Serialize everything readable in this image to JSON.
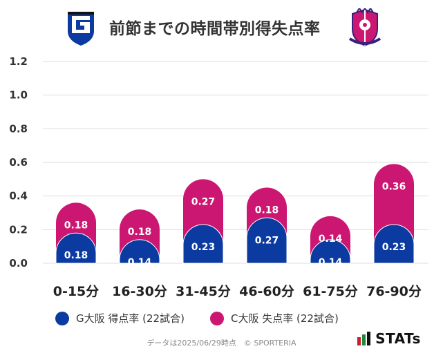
{
  "header": {
    "title": "前節までの時間帯別得失点率"
  },
  "colors": {
    "home": "#0b3aa0",
    "away": "#cc1772",
    "grid": "#dddddd"
  },
  "chart_data": {
    "type": "bar",
    "stacked": true,
    "categories": [
      "0-15分",
      "16-30分",
      "31-45分",
      "46-60分",
      "61-75分",
      "76-90分"
    ],
    "series": [
      {
        "name": "G大阪 得点率 (22試合)",
        "values": [
          0.18,
          0.14,
          0.23,
          0.27,
          0.14,
          0.23
        ]
      },
      {
        "name": "C大阪 失点率 (22試合)",
        "values": [
          0.18,
          0.18,
          0.27,
          0.18,
          0.14,
          0.36
        ]
      }
    ],
    "yticks": [
      "0.0",
      "0.2",
      "0.4",
      "0.6",
      "0.8",
      "1.0",
      "1.2"
    ],
    "ylim": [
      0,
      1.2
    ],
    "grid": true,
    "legend": "bottom"
  },
  "footnote": "データは2025/06/29時点　© SPORTERIA",
  "brand": {
    "name": "STATs"
  }
}
